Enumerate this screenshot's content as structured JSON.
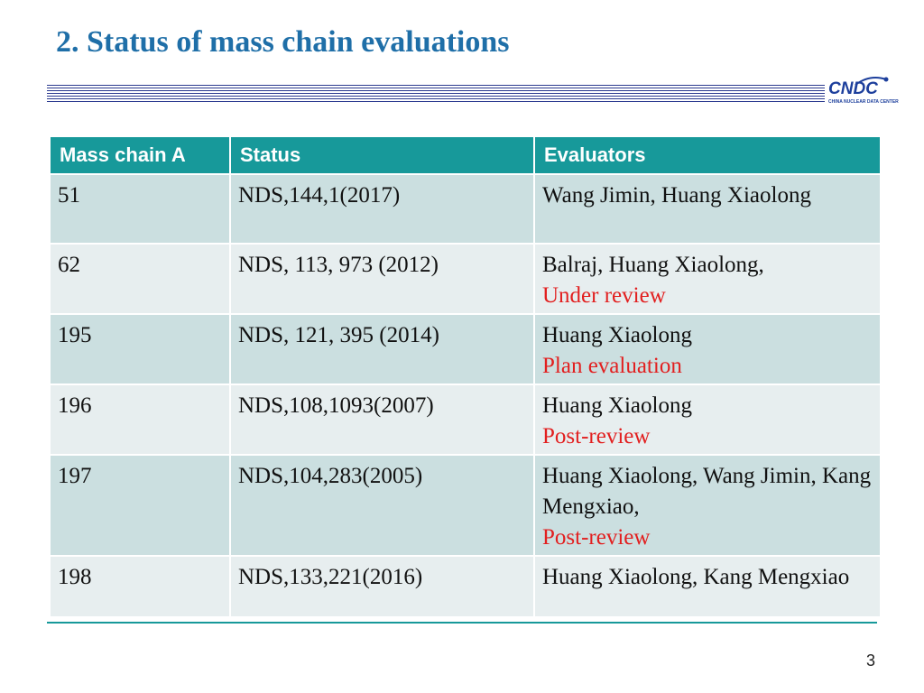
{
  "title": "2. Status of mass chain evaluations",
  "logo": {
    "text": "CNDC",
    "subtitle": "CHINA NUCLEAR DATA CENTER"
  },
  "table": {
    "headers": [
      "Mass chain A",
      "Status",
      "Evaluators"
    ],
    "rows": [
      {
        "mass": "51",
        "status": "NDS,144,1(2017)",
        "evaluators": "Wang Jimin, Huang Xiaolong",
        "note": ""
      },
      {
        "mass": "62",
        "status": "NDS, 113, 973 (2012)",
        "evaluators": "Balraj, Huang Xiaolong,",
        "note": "Under review"
      },
      {
        "mass": "195",
        "status": "NDS, 121, 395 (2014)",
        "evaluators": "Huang Xiaolong",
        "note": "Plan evaluation"
      },
      {
        "mass": "196",
        "status": "NDS,108,1093(2007)",
        "evaluators": "Huang Xiaolong",
        "note": "Post-review"
      },
      {
        "mass": "197",
        "status": "NDS,104,283(2005)",
        "evaluators": "Huang Xiaolong, Wang Jimin, Kang Mengxiao,",
        "note": "Post-review"
      },
      {
        "mass": "198",
        "status": "NDS,133,221(2016)",
        "evaluators": "Huang Xiaolong, Kang Mengxiao",
        "note": ""
      }
    ]
  },
  "page_number": "3",
  "colors": {
    "title": "#1f6fa8",
    "header_bg": "#17999a",
    "note": "#e21f1f"
  }
}
